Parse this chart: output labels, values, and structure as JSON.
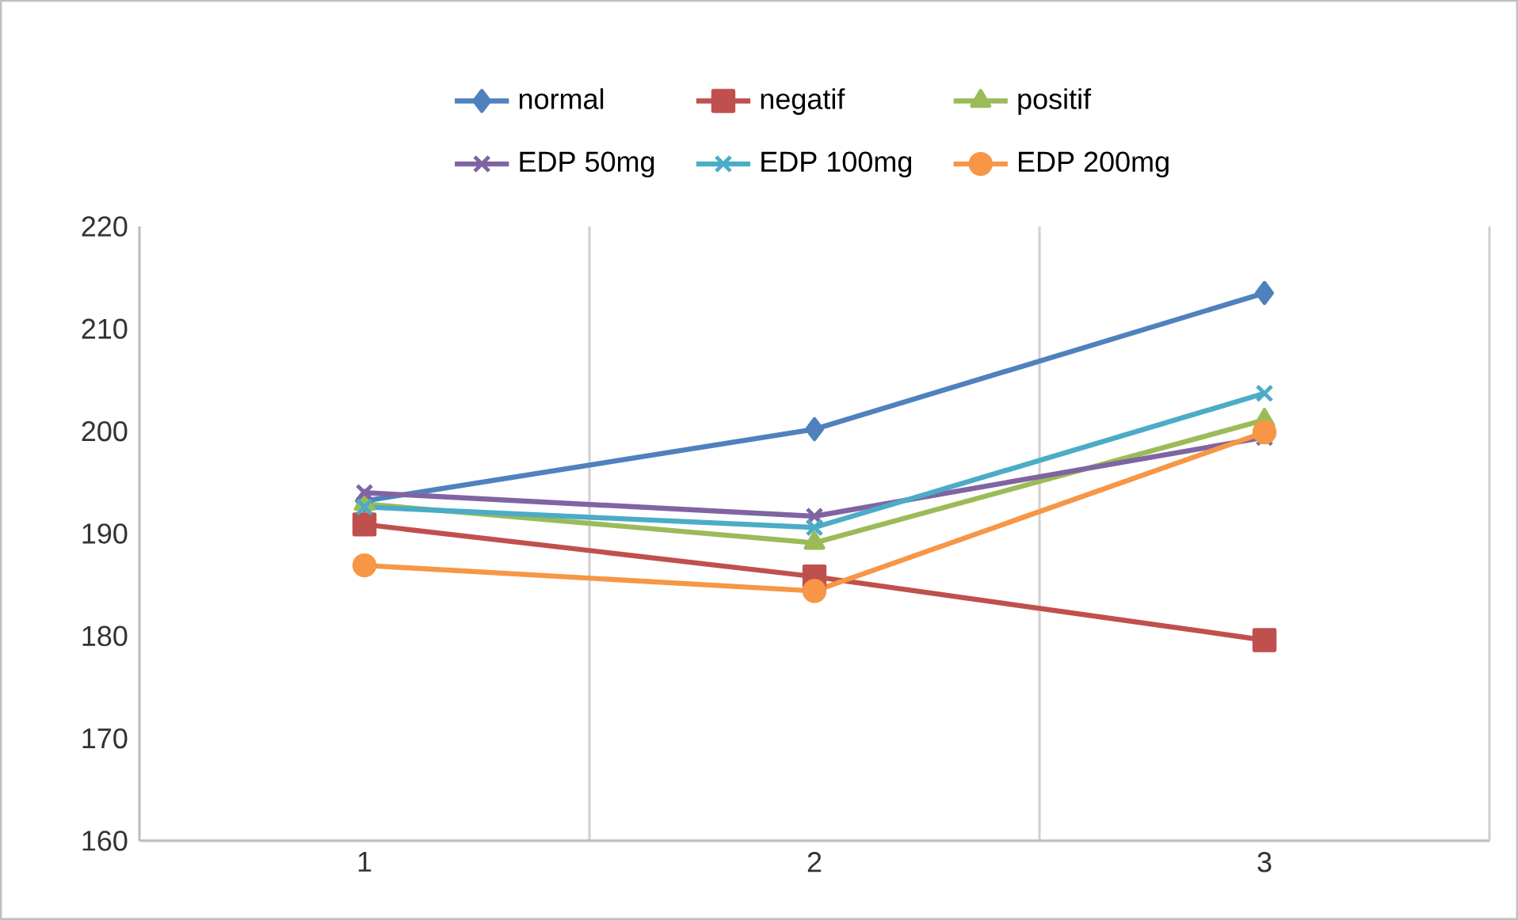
{
  "chart_data": {
    "type": "line",
    "categories": [
      "1",
      "2",
      "3"
    ],
    "series": [
      {
        "name": "normal",
        "color": "#4f81bd",
        "marker": "diamond",
        "values": [
          193.2,
          200.2,
          213.5
        ]
      },
      {
        "name": "negatif",
        "color": "#c0504d",
        "marker": "square",
        "values": [
          190.9,
          185.8,
          179.6
        ]
      },
      {
        "name": "positif",
        "color": "#9bbb59",
        "marker": "triangle",
        "values": [
          192.9,
          189.1,
          201.1
        ]
      },
      {
        "name": "EDP 50mg",
        "color": "#8064a2",
        "marker": "cross",
        "values": [
          194.0,
          191.7,
          199.4
        ]
      },
      {
        "name": "EDP 100mg",
        "color": "#4bacc6",
        "marker": "cross",
        "values": [
          192.6,
          190.6,
          203.7
        ]
      },
      {
        "name": "EDP 200mg",
        "color": "#f79646",
        "marker": "circle",
        "values": [
          186.9,
          184.4,
          199.9
        ]
      }
    ],
    "ylim": [
      160,
      220
    ],
    "yticks": [
      160,
      170,
      180,
      190,
      200,
      210,
      220
    ],
    "grid": "x",
    "legend": "top",
    "line_style": "solid"
  }
}
